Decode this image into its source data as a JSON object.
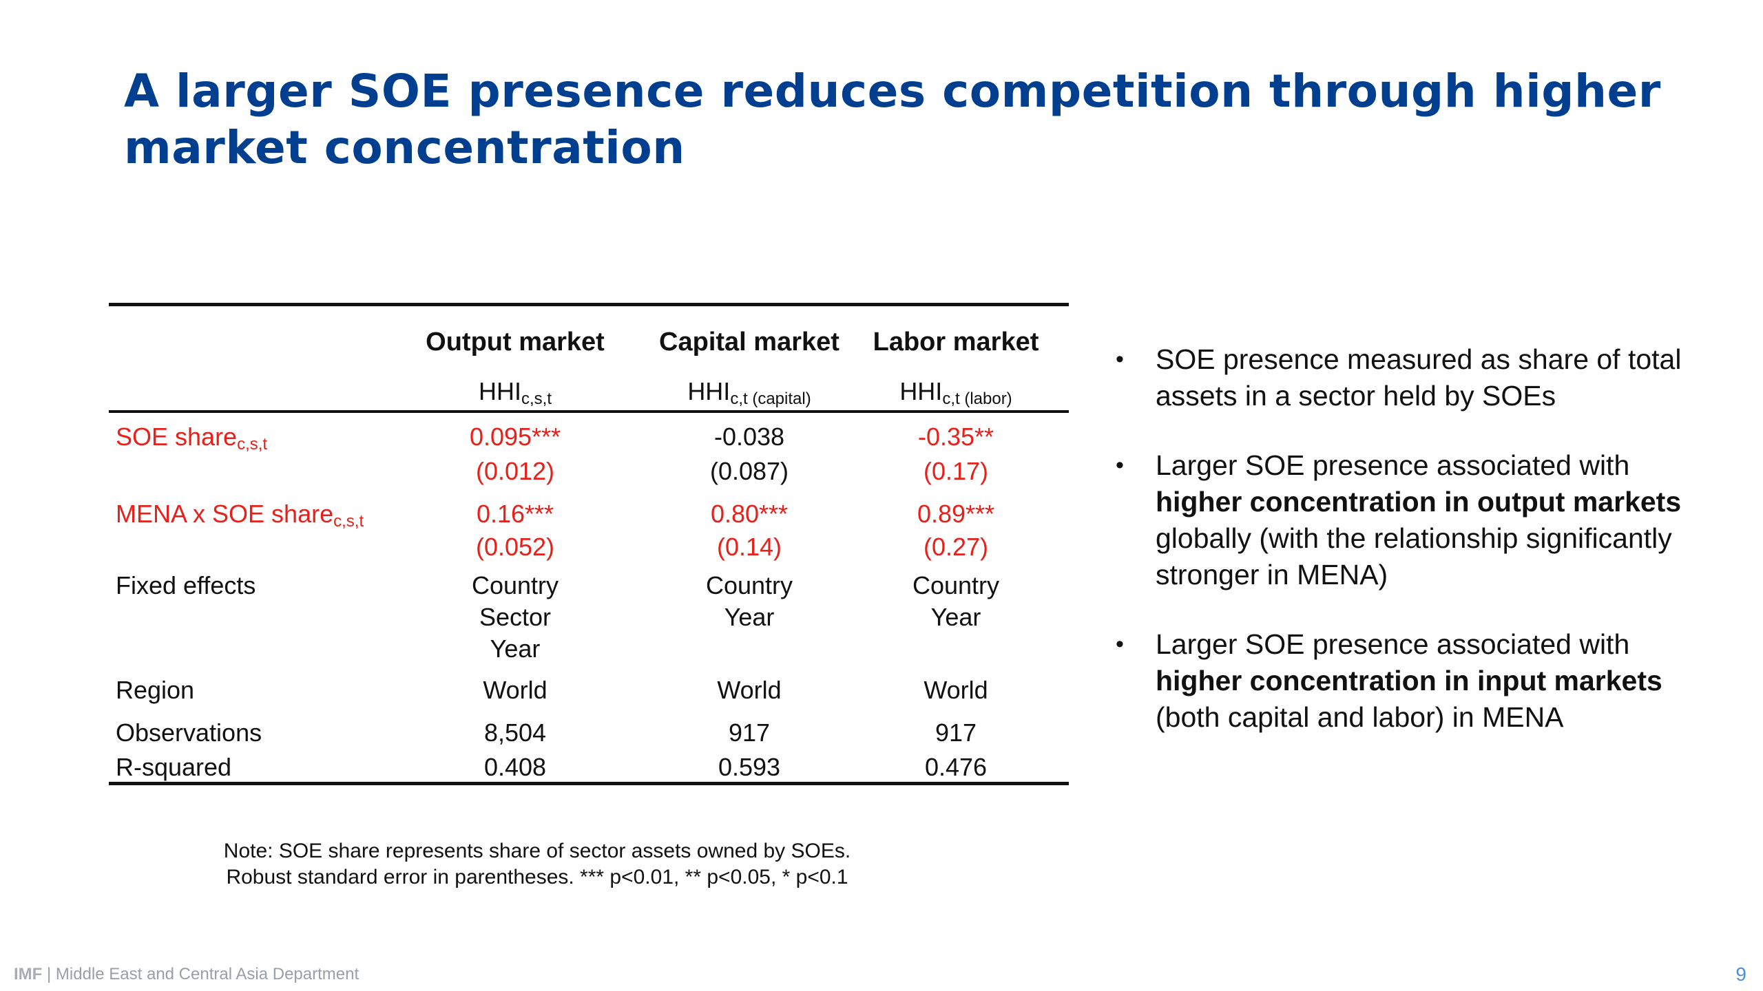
{
  "title": "A larger SOE presence reduces competition through higher market concentration",
  "table": {
    "columns": [
      {
        "header": "Output market",
        "dep_main": "HHI",
        "dep_sub": "c,s,t",
        "dep_sub2": ""
      },
      {
        "header": "Capital market",
        "dep_main": "HHI",
        "dep_sub": "c,t",
        "dep_sub2": " (capital)"
      },
      {
        "header": "Labor market",
        "dep_main": "HHI",
        "dep_sub": "c,t",
        "dep_sub2": " (labor)"
      }
    ],
    "soe_share": {
      "label": "SOE share",
      "label_sub": "c,s,t",
      "coef": [
        "0.095***",
        "-0.038",
        "-0.35**"
      ],
      "se": [
        "(0.012)",
        "(0.087)",
        "(0.17)"
      ]
    },
    "mena_soe": {
      "label": "MENA x SOE share",
      "label_sub": "c,s,t",
      "coef": [
        "0.16***",
        "0.80***",
        "0.89***"
      ],
      "se": [
        "(0.052)",
        "(0.14)",
        "(0.27)"
      ]
    },
    "fixed_effects": {
      "label": "Fixed effects",
      "values": [
        [
          "Country",
          "Sector",
          "Year"
        ],
        [
          "Country",
          "Year"
        ],
        [
          "Country",
          "Year"
        ]
      ]
    },
    "region": {
      "label": "Region",
      "values": [
        "World",
        "World",
        "World"
      ]
    },
    "observations": {
      "label": "Observations",
      "values": [
        "8,504",
        "917",
        "917"
      ]
    },
    "rsquared": {
      "label": "R-squared",
      "values": [
        "0.408",
        "0.593",
        "0.476"
      ]
    }
  },
  "note": {
    "line1": "Note: SOE share represents share of sector assets owned by SOEs.",
    "line2": "Robust standard error in parentheses. *** p<0.01, ** p<0.05, * p<0.1"
  },
  "bullets": [
    {
      "pre": "SOE presence measured as share of total assets in a sector held by SOEs",
      "bold": "",
      "post": ""
    },
    {
      "pre": "Larger SOE presence associated with ",
      "bold": "higher concentration in output markets",
      "post": " globally (with the relationship significantly stronger in MENA)"
    },
    {
      "pre": "Larger SOE presence associated with ",
      "bold": "higher concentration in input markets",
      "post": " (both capital and labor) in MENA"
    }
  ],
  "footer": {
    "brand": "IMF",
    "separator": " | ",
    "department": "Middle East and Central Asia Department"
  },
  "page_number": "9",
  "colors": {
    "title": "#003f8f",
    "highlight": "#e8201a",
    "footer": "#9a9ea8",
    "page_number": "#4a90d9"
  }
}
